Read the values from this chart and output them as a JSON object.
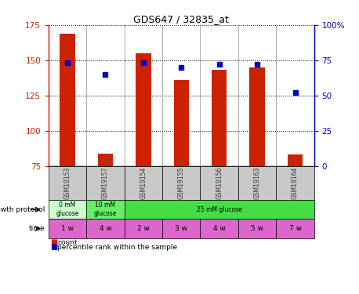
{
  "title": "GDS647 / 32835_at",
  "samples": [
    "GSM19153",
    "GSM19157",
    "GSM19154",
    "GSM19155",
    "GSM19156",
    "GSM19163",
    "GSM19164"
  ],
  "bar_values": [
    169,
    84,
    155,
    136,
    143,
    145,
    83
  ],
  "percentile_values": [
    73,
    65,
    73,
    70,
    72,
    72,
    52
  ],
  "bar_color": "#CC2200",
  "percentile_color": "#0000CC",
  "ylim_left": [
    75,
    175
  ],
  "ylim_right": [
    0,
    100
  ],
  "yticks_left": [
    75,
    100,
    125,
    150,
    175
  ],
  "yticks_right": [
    0,
    25,
    50,
    75,
    100
  ],
  "ytick_labels_right": [
    "0",
    "25",
    "50",
    "75",
    "100%"
  ],
  "time_labels": [
    "1 w",
    "4 w",
    "2 w",
    "3 w",
    "4 w",
    "5 w",
    "7 w"
  ],
  "time_color": "#dd66cc",
  "sample_bgcolor": "#c8c8c8",
  "growth_data": [
    {
      "start": 0,
      "end": 1,
      "label": "0 mM\nglucose",
      "color": "#ccffcc"
    },
    {
      "start": 1,
      "end": 2,
      "label": "10 mM\nglucose",
      "color": "#66ee66"
    },
    {
      "start": 2,
      "end": 7,
      "label": "25 mM glucose",
      "color": "#44dd44"
    }
  ],
  "legend_count_color": "#CC2200",
  "legend_pct_color": "#0000CC",
  "bar_bottom": 75,
  "bar_width": 0.4
}
